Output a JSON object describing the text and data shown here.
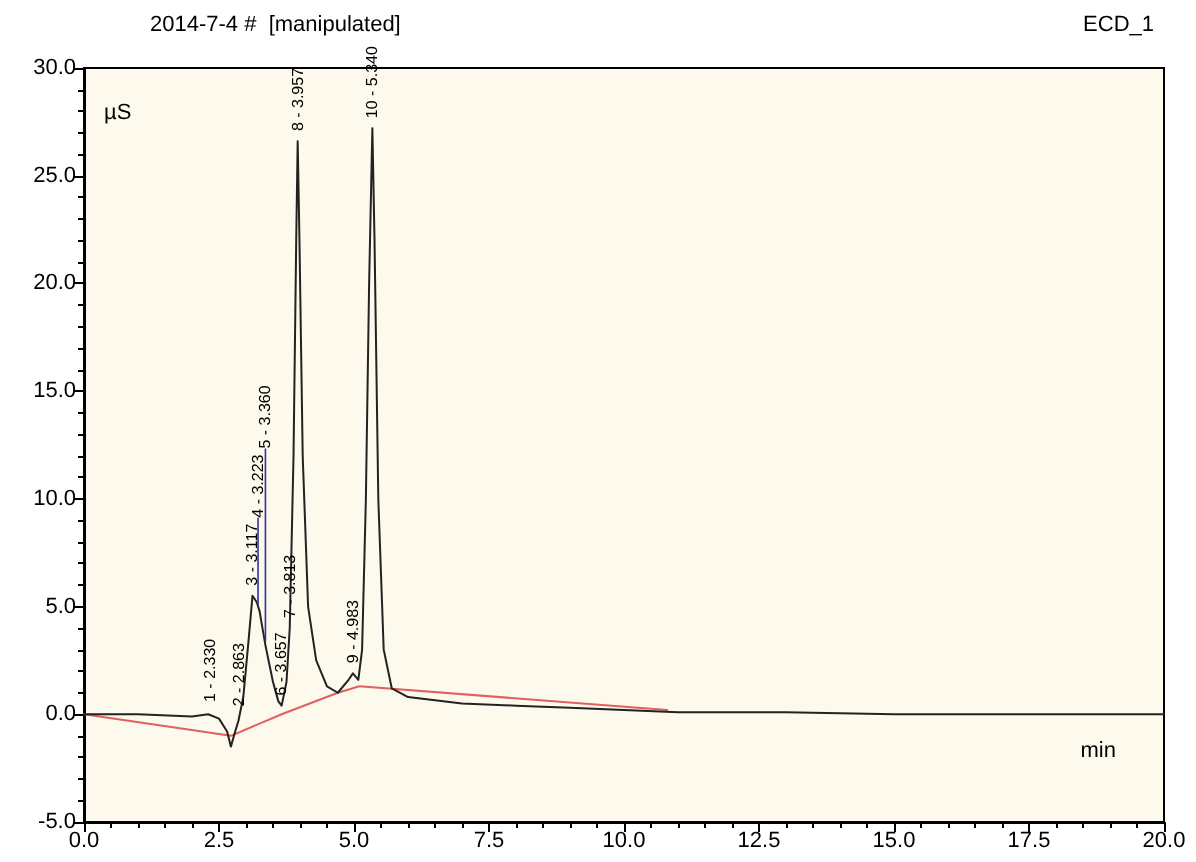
{
  "chart_data": {
    "type": "line",
    "title": "2014-7-4 #  [manipulated]",
    "subtitle": "ECD_1",
    "xlabel": "min",
    "ylabel": "µS",
    "series": [
      {
        "color": "#222222",
        "x": [
          0,
          1,
          2,
          2.3,
          2.5,
          2.65,
          2.72,
          2.8,
          2.86,
          2.95,
          3.05,
          3.12,
          3.2,
          3.25,
          3.36,
          3.5,
          3.6,
          3.66,
          3.75,
          3.81,
          3.88,
          3.93,
          3.957,
          3.99,
          4.05,
          4.15,
          4.3,
          4.5,
          4.7,
          4.9,
          4.98,
          5.08,
          5.15,
          5.22,
          5.28,
          5.34,
          5.38,
          5.45,
          5.55,
          5.7,
          6,
          7,
          8,
          9,
          10,
          11,
          13,
          15,
          20
        ],
        "values": [
          0,
          0,
          -0.1,
          0,
          -0.2,
          -0.8,
          -1.5,
          -0.8,
          -0.3,
          0.8,
          3.5,
          5.5,
          5.2,
          4.8,
          3.2,
          1.5,
          0.6,
          0.4,
          1.5,
          4,
          12,
          22,
          26.6,
          22,
          12,
          5,
          2.5,
          1.3,
          1,
          1.6,
          1.9,
          1.6,
          3,
          10,
          20,
          27.2,
          22,
          10,
          3,
          1.2,
          0.8,
          0.5,
          0.4,
          0.3,
          0.2,
          0.1,
          0.1,
          0,
          0
        ]
      },
      {
        "color": "#e06060",
        "x": [
          0,
          2.72,
          3.66,
          4.7,
          5.1,
          10.8
        ],
        "values": [
          0,
          -1,
          0,
          1,
          1.3,
          0.2
        ]
      }
    ],
    "xlim": [
      0,
      20
    ],
    "xticks": [
      {
        "value": 0,
        "label": "0.0"
      },
      {
        "value": 2.5,
        "label": "2.5"
      },
      {
        "value": 5,
        "label": "5.0"
      },
      {
        "value": 7.5,
        "label": "7.5"
      },
      {
        "value": 10,
        "label": "10.0"
      },
      {
        "value": 12.5,
        "label": "12.5"
      },
      {
        "value": 15,
        "label": "15.0"
      },
      {
        "value": 17.5,
        "label": "17.5"
      },
      {
        "value": 20,
        "label": "20.0"
      }
    ],
    "ylim": [
      -5,
      30
    ],
    "yticks": [
      {
        "value": -5,
        "label": "-5.0"
      },
      {
        "value": 0,
        "label": "0.0"
      },
      {
        "value": 5,
        "label": "5.0"
      },
      {
        "value": 10,
        "label": "10.0"
      },
      {
        "value": 15,
        "label": "15.0"
      },
      {
        "value": 20,
        "label": "20.0"
      },
      {
        "value": 25,
        "label": "25.0"
      },
      {
        "value": 30,
        "label": "30.0"
      }
    ],
    "grid": false,
    "marker": "none",
    "line_style": "solid",
    "annotations": [
      {
        "text": "1 - 2.330",
        "x": 2.33,
        "y": 0.2
      },
      {
        "text": "2 - 2.863",
        "x": 2.863,
        "y": 0
      },
      {
        "text": "3 - 3.117",
        "x": 3.117,
        "y": 5.6
      },
      {
        "text": "4 - 3.223",
        "x": 3.223,
        "y": 5
      },
      {
        "text": "5 - 3.360",
        "x": 3.36,
        "y": 3.3
      },
      {
        "text": "6 - 3.657",
        "x": 3.657,
        "y": 0.5
      },
      {
        "text": "7 - 3.813",
        "x": 3.813,
        "y": 4.1
      },
      {
        "text": "8 - 3.957",
        "x": 3.957,
        "y": 26.7
      },
      {
        "text": "9 - 4.983",
        "x": 4.983,
        "y": 2
      },
      {
        "text": "10 - 5.340",
        "x": 5.34,
        "y": 27.3
      }
    ]
  }
}
